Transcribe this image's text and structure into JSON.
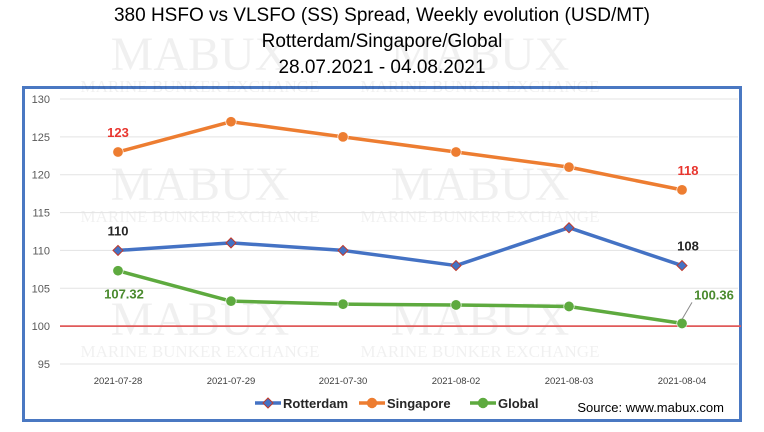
{
  "title_lines": [
    "380 HSFO vs VLSFO (SS) Spread, Weekly evolution (USD/MT)",
    "Rotterdam/Singapore/Global",
    "28.07.2021 - 04.08.2021"
  ],
  "source": "Source: www.mabux.com",
  "watermark": {
    "brand": "MABUX",
    "tagline": "MARINE BUNKER EXCHANGE"
  },
  "chart_data": {
    "type": "line",
    "categories": [
      "2021-07-28",
      "2021-07-29",
      "2021-07-30",
      "2021-08-02",
      "2021-08-03",
      "2021-08-04"
    ],
    "ylim": [
      95,
      130
    ],
    "yticks": [
      95,
      100,
      105,
      110,
      115,
      120,
      125,
      130
    ],
    "reference_line": {
      "value": 100,
      "color": "#e05a5a"
    },
    "legend_position": "bottom",
    "series": [
      {
        "name": "Rotterdam",
        "color": "#4472c4",
        "values": [
          110,
          111,
          110,
          108,
          113,
          108
        ],
        "labels": [
          {
            "index": 0,
            "text": "110",
            "color": "#262626"
          },
          {
            "index": 5,
            "text": "108",
            "color": "#262626"
          }
        ]
      },
      {
        "name": "Singapore",
        "color": "#ed7d31",
        "values": [
          123,
          127,
          125,
          123,
          121,
          118
        ],
        "labels": [
          {
            "index": 0,
            "text": "123",
            "color": "#e8362f"
          },
          {
            "index": 5,
            "text": "118",
            "color": "#e8362f"
          }
        ]
      },
      {
        "name": "Global",
        "color": "#5eaa3f",
        "values": [
          107.32,
          103.3,
          102.9,
          102.8,
          102.6,
          100.36
        ],
        "labels": [
          {
            "index": 0,
            "text": "107.32",
            "color": "#4a8a2e"
          },
          {
            "index": 5,
            "text": "100.36",
            "color": "#4a8a2e"
          }
        ]
      }
    ]
  }
}
